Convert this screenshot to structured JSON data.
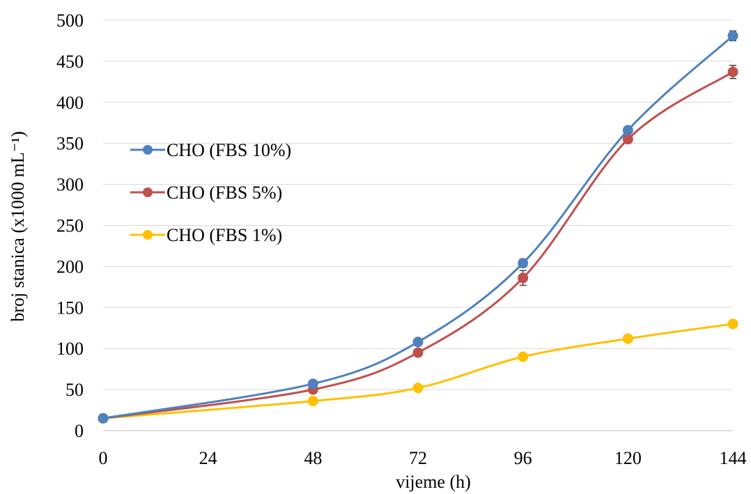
{
  "chart_data": {
    "type": "line",
    "title": "",
    "xlabel": "vijeme (h)",
    "ylabel": "broj stanica (x1000 mL⁻¹)",
    "x": [
      0,
      48,
      72,
      96,
      120,
      144
    ],
    "xticks": [
      "0",
      "24",
      "48",
      "72",
      "96",
      "120",
      "144"
    ],
    "xlim": [
      0,
      144
    ],
    "ylim": [
      0,
      500
    ],
    "yticks": [
      "0",
      "50",
      "100",
      "150",
      "200",
      "250",
      "300",
      "350",
      "400",
      "450",
      "500"
    ],
    "grid": true,
    "legend_position": "left-middle",
    "series": [
      {
        "name": "CHO (FBS 10%)",
        "color": "#4f81bd",
        "values": [
          15,
          57,
          108,
          204,
          366,
          481
        ],
        "errors": [
          0,
          3,
          2,
          5,
          3,
          6
        ]
      },
      {
        "name": "CHO (FBS 5%)",
        "color": "#c0504d",
        "values": [
          15,
          50,
          95,
          186,
          355,
          437
        ],
        "errors": [
          0,
          2,
          2,
          9,
          3,
          8
        ]
      },
      {
        "name": "CHO (FBS 1%)",
        "color": "#ffc000",
        "values": [
          15,
          36,
          52,
          90,
          112,
          130
        ],
        "errors": [
          0,
          1,
          1,
          1,
          1,
          1
        ]
      }
    ]
  }
}
